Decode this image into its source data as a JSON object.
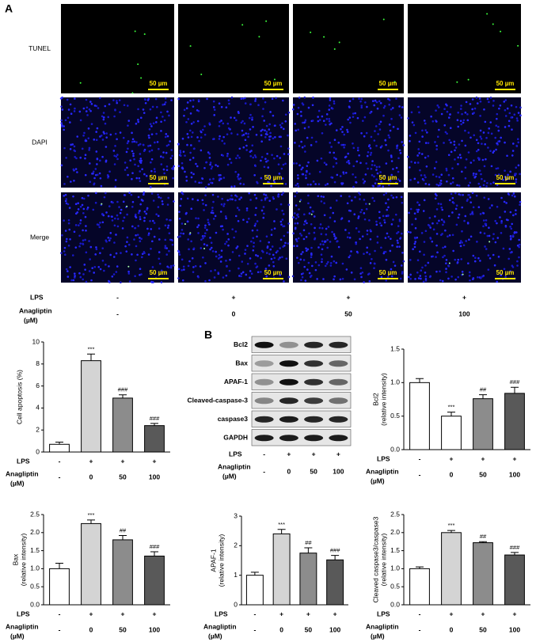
{
  "panel_a": {
    "label": "A",
    "rows": [
      "TUNEL",
      "DAPI",
      "Merge"
    ],
    "scale_bar": "50 µm",
    "lps_label": "LPS",
    "lps": [
      "-",
      "+",
      "+",
      "+"
    ],
    "anagliptin_label": [
      "Anagliptin",
      "(µM)"
    ],
    "anagliptin": [
      "-",
      "0",
      "50",
      "100"
    ]
  },
  "panel_b": {
    "label": "B",
    "blot_rows": [
      "Bcl2",
      "Bax",
      "APAF-1",
      "Cleaved-caspase-3",
      "caspase3",
      "GAPDH"
    ],
    "lps_label": "LPS",
    "lps": [
      "-",
      "+",
      "+",
      "+"
    ],
    "anagliptin_label": [
      "Anagliptin",
      "(µM)"
    ],
    "anagliptin": [
      "-",
      "0",
      "50",
      "100"
    ]
  },
  "chart_data": [
    {
      "type": "bar",
      "ylabel": [
        "Cell apoptosis (%)"
      ],
      "categories": [
        "-",
        "0",
        "50",
        "100"
      ],
      "categories_label": [
        "Anagliptin",
        "(µM)"
      ],
      "lps_label": "LPS",
      "lps": [
        "-",
        "+",
        "+",
        "+"
      ],
      "values": [
        0.7,
        8.3,
        4.9,
        2.4
      ],
      "errors": [
        0.2,
        0.6,
        0.3,
        0.2
      ],
      "annotations": [
        null,
        "***",
        "###",
        "###"
      ],
      "colors": [
        "#ffffff",
        "#d4d4d4",
        "#8c8c8c",
        "#595959"
      ],
      "ylim": [
        0,
        10
      ],
      "yticks": [
        0,
        2,
        4,
        6,
        8,
        10
      ]
    },
    {
      "type": "bar",
      "ylabel": [
        "Bcl2",
        "(relative intensity)"
      ],
      "categories": [
        "-",
        "0",
        "50",
        "100"
      ],
      "categories_label": [
        "Anagliptin",
        "(µM)"
      ],
      "lps_label": "LPS",
      "lps": [
        "-",
        "+",
        "+",
        "+"
      ],
      "values": [
        1.0,
        0.5,
        0.76,
        0.84
      ],
      "errors": [
        0.06,
        0.06,
        0.06,
        0.09
      ],
      "annotations": [
        null,
        "***",
        "##",
        "###"
      ],
      "colors": [
        "#ffffff",
        "#ffffff",
        "#8c8c8c",
        "#595959"
      ],
      "ylim": [
        0,
        1.5
      ],
      "yticks": [
        {
          "value": 0,
          "label": "0.0"
        },
        0.5,
        {
          "value": 1,
          "label": "1.0"
        },
        1.5
      ]
    },
    {
      "type": "bar",
      "ylabel": [
        "Bax",
        "(relative intensity)"
      ],
      "categories": [
        "-",
        "0",
        "50",
        "100"
      ],
      "categories_label": [
        "Anagliptin",
        "(µM)"
      ],
      "lps_label": "LPS",
      "lps": [
        "-",
        "+",
        "+",
        "+"
      ],
      "values": [
        1.0,
        2.25,
        1.8,
        1.35
      ],
      "errors": [
        0.15,
        0.1,
        0.12,
        0.12
      ],
      "annotations": [
        null,
        "***",
        "##",
        "###"
      ],
      "colors": [
        "#ffffff",
        "#d4d4d4",
        "#8c8c8c",
        "#595959"
      ],
      "ylim": [
        0,
        2.5
      ],
      "yticks": [
        {
          "value": 0,
          "label": "0.0"
        },
        0.5,
        {
          "value": 1,
          "label": "1.0"
        },
        1.5,
        {
          "value": 2,
          "label": "2.0"
        },
        2.5
      ]
    },
    {
      "type": "bar",
      "ylabel": [
        "APAF-1",
        "(relative intensity)"
      ],
      "categories": [
        "-",
        "0",
        "50",
        "100"
      ],
      "categories_label": [
        "Anagliptin",
        "(µM)"
      ],
      "lps_label": "LPS",
      "lps": [
        "-",
        "+",
        "+",
        "+"
      ],
      "values": [
        1.0,
        2.4,
        1.75,
        1.52
      ],
      "errors": [
        0.1,
        0.15,
        0.18,
        0.15
      ],
      "annotations": [
        null,
        "***",
        "##",
        "###"
      ],
      "colors": [
        "#ffffff",
        "#d4d4d4",
        "#8c8c8c",
        "#595959"
      ],
      "ylim": [
        0,
        3
      ],
      "yticks": [
        0,
        1,
        2,
        3
      ]
    },
    {
      "type": "bar",
      "ylabel": [
        "Cleaved caspase3/caspase3",
        "(relative intensity)"
      ],
      "categories": [
        "-",
        "0",
        "50",
        "100"
      ],
      "categories_label": [
        "Anagliptin",
        "(µM)"
      ],
      "lps_label": "LPS",
      "lps": [
        "-",
        "+",
        "+",
        "+"
      ],
      "values": [
        1.0,
        2.0,
        1.72,
        1.38
      ],
      "errors": [
        0.05,
        0.06,
        0.03,
        0.07
      ],
      "annotations": [
        null,
        "***",
        "##",
        "###"
      ],
      "colors": [
        "#ffffff",
        "#d4d4d4",
        "#8c8c8c",
        "#595959"
      ],
      "ylim": [
        0,
        2.5
      ],
      "yticks": [
        {
          "value": 0,
          "label": "0.0"
        },
        0.5,
        {
          "value": 1,
          "label": "1.0"
        },
        1.5,
        {
          "value": 2,
          "label": "2.0"
        },
        2.5
      ]
    }
  ]
}
